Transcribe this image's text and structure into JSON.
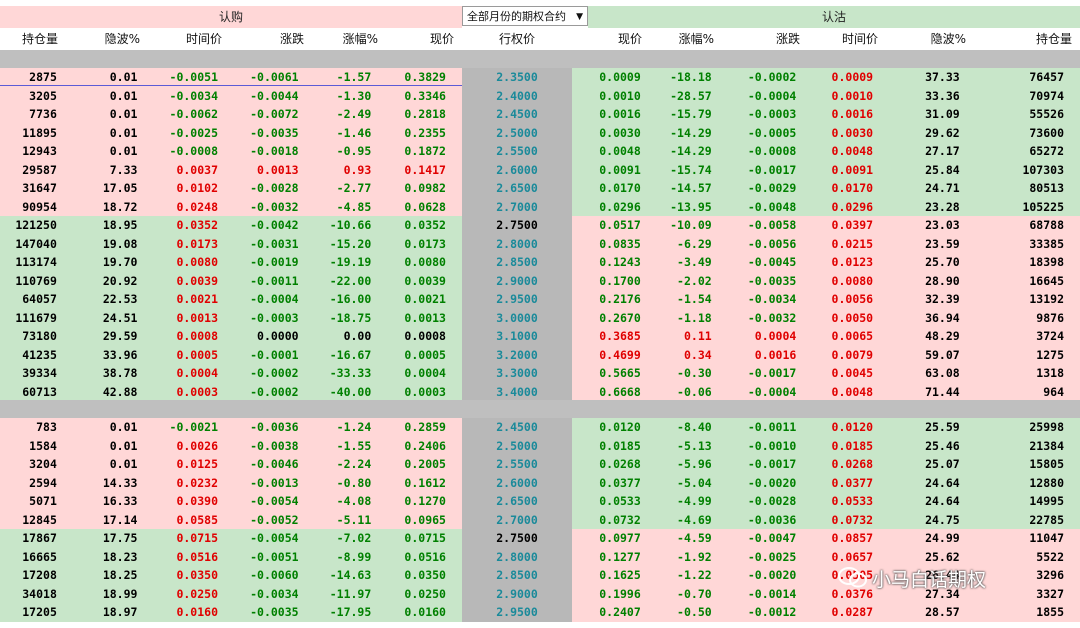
{
  "titles": {
    "call": "认购",
    "put": "认沽",
    "dropdown": "全部月份的期权合约"
  },
  "headers": {
    "call": [
      "持仓量",
      "隐波%",
      "时间价",
      "涨跌",
      "涨幅%",
      "现价"
    ],
    "mid": "行权价",
    "put": [
      "现价",
      "涨幅%",
      "涨跌",
      "时间价",
      "隐波%",
      "持仓量"
    ]
  },
  "section1": [
    {
      "call": [
        "2875",
        "0.01",
        "-0.0051",
        "-0.0061",
        "-1.57",
        "0.3829"
      ],
      "strike": "2.3500",
      "put": [
        "0.0009",
        "-18.18",
        "-0.0002",
        "0.0009",
        "37.33",
        "76457"
      ]
    },
    {
      "call": [
        "3205",
        "0.01",
        "-0.0034",
        "-0.0044",
        "-1.30",
        "0.3346"
      ],
      "strike": "2.4000",
      "put": [
        "0.0010",
        "-28.57",
        "-0.0004",
        "0.0010",
        "33.36",
        "70974"
      ]
    },
    {
      "call": [
        "7736",
        "0.01",
        "-0.0062",
        "-0.0072",
        "-2.49",
        "0.2818"
      ],
      "strike": "2.4500",
      "put": [
        "0.0016",
        "-15.79",
        "-0.0003",
        "0.0016",
        "31.09",
        "55526"
      ]
    },
    {
      "call": [
        "11895",
        "0.01",
        "-0.0025",
        "-0.0035",
        "-1.46",
        "0.2355"
      ],
      "strike": "2.5000",
      "put": [
        "0.0030",
        "-14.29",
        "-0.0005",
        "0.0030",
        "29.62",
        "73600"
      ]
    },
    {
      "call": [
        "12943",
        "0.01",
        "-0.0008",
        "-0.0018",
        "-0.95",
        "0.1872"
      ],
      "strike": "2.5500",
      "put": [
        "0.0048",
        "-14.29",
        "-0.0008",
        "0.0048",
        "27.17",
        "65272"
      ]
    },
    {
      "call": [
        "29587",
        "7.33",
        "0.0037",
        "0.0013",
        "0.93",
        "0.1417"
      ],
      "strike": "2.6000",
      "put": [
        "0.0091",
        "-15.74",
        "-0.0017",
        "0.0091",
        "25.84",
        "107303"
      ]
    },
    {
      "call": [
        "31647",
        "17.05",
        "0.0102",
        "-0.0028",
        "-2.77",
        "0.0982"
      ],
      "strike": "2.6500",
      "put": [
        "0.0170",
        "-14.57",
        "-0.0029",
        "0.0170",
        "24.71",
        "80513"
      ]
    },
    {
      "call": [
        "90954",
        "18.72",
        "0.0248",
        "-0.0032",
        "-4.85",
        "0.0628"
      ],
      "strike": "2.7000",
      "put": [
        "0.0296",
        "-13.95",
        "-0.0048",
        "0.0296",
        "23.28",
        "105225"
      ]
    },
    {
      "call": [
        "121250",
        "18.95",
        "0.0352",
        "-0.0042",
        "-10.66",
        "0.0352"
      ],
      "strike": "2.7500",
      "put": [
        "0.0517",
        "-10.09",
        "-0.0058",
        "0.0397",
        "23.03",
        "68788"
      ]
    },
    {
      "call": [
        "147040",
        "19.08",
        "0.0173",
        "-0.0031",
        "-15.20",
        "0.0173"
      ],
      "strike": "2.8000",
      "put": [
        "0.0835",
        "-6.29",
        "-0.0056",
        "0.0215",
        "23.59",
        "33385"
      ]
    },
    {
      "call": [
        "113174",
        "19.70",
        "0.0080",
        "-0.0019",
        "-19.19",
        "0.0080"
      ],
      "strike": "2.8500",
      "put": [
        "0.1243",
        "-3.49",
        "-0.0045",
        "0.0123",
        "25.70",
        "18398"
      ]
    },
    {
      "call": [
        "110769",
        "20.92",
        "0.0039",
        "-0.0011",
        "-22.00",
        "0.0039"
      ],
      "strike": "2.9000",
      "put": [
        "0.1700",
        "-2.02",
        "-0.0035",
        "0.0080",
        "28.90",
        "16645"
      ]
    },
    {
      "call": [
        "64057",
        "22.53",
        "0.0021",
        "-0.0004",
        "-16.00",
        "0.0021"
      ],
      "strike": "2.9500",
      "put": [
        "0.2176",
        "-1.54",
        "-0.0034",
        "0.0056",
        "32.39",
        "13192"
      ]
    },
    {
      "call": [
        "111679",
        "24.51",
        "0.0013",
        "-0.0003",
        "-18.75",
        "0.0013"
      ],
      "strike": "3.0000",
      "put": [
        "0.2670",
        "-1.18",
        "-0.0032",
        "0.0050",
        "36.94",
        "9876"
      ]
    },
    {
      "call": [
        "73180",
        "29.59",
        "0.0008",
        "0.0000",
        "0.00",
        "0.0008"
      ],
      "strike": "3.1000",
      "put": [
        "0.3685",
        "0.11",
        "0.0004",
        "0.0065",
        "48.29",
        "3724"
      ]
    },
    {
      "call": [
        "41235",
        "33.96",
        "0.0005",
        "-0.0001",
        "-16.67",
        "0.0005"
      ],
      "strike": "3.2000",
      "put": [
        "0.4699",
        "0.34",
        "0.0016",
        "0.0079",
        "59.07",
        "1275"
      ]
    },
    {
      "call": [
        "39334",
        "38.78",
        "0.0004",
        "-0.0002",
        "-33.33",
        "0.0004"
      ],
      "strike": "3.3000",
      "put": [
        "0.5665",
        "-0.30",
        "-0.0017",
        "0.0045",
        "63.08",
        "1318"
      ]
    },
    {
      "call": [
        "60713",
        "42.88",
        "0.0003",
        "-0.0002",
        "-40.00",
        "0.0003"
      ],
      "strike": "3.4000",
      "put": [
        "0.6668",
        "-0.06",
        "-0.0004",
        "0.0048",
        "71.44",
        "964"
      ]
    }
  ],
  "section2": [
    {
      "call": [
        "783",
        "0.01",
        "-0.0021",
        "-0.0036",
        "-1.24",
        "0.2859"
      ],
      "strike": "2.4500",
      "put": [
        "0.0120",
        "-8.40",
        "-0.0011",
        "0.0120",
        "25.59",
        "25998"
      ]
    },
    {
      "call": [
        "1584",
        "0.01",
        "0.0026",
        "-0.0038",
        "-1.55",
        "0.2406"
      ],
      "strike": "2.5000",
      "put": [
        "0.0185",
        "-5.13",
        "-0.0010",
        "0.0185",
        "25.46",
        "21384"
      ]
    },
    {
      "call": [
        "3204",
        "0.01",
        "0.0125",
        "-0.0046",
        "-2.24",
        "0.2005"
      ],
      "strike": "2.5500",
      "put": [
        "0.0268",
        "-5.96",
        "-0.0017",
        "0.0268",
        "25.07",
        "15805"
      ]
    },
    {
      "call": [
        "2594",
        "14.33",
        "0.0232",
        "-0.0013",
        "-0.80",
        "0.1612"
      ],
      "strike": "2.6000",
      "put": [
        "0.0377",
        "-5.04",
        "-0.0020",
        "0.0377",
        "24.64",
        "12880"
      ]
    },
    {
      "call": [
        "5071",
        "16.33",
        "0.0390",
        "-0.0054",
        "-4.08",
        "0.1270"
      ],
      "strike": "2.6500",
      "put": [
        "0.0533",
        "-4.99",
        "-0.0028",
        "0.0533",
        "24.64",
        "14995"
      ]
    },
    {
      "call": [
        "12845",
        "17.14",
        "0.0585",
        "-0.0052",
        "-5.11",
        "0.0965"
      ],
      "strike": "2.7000",
      "put": [
        "0.0732",
        "-4.69",
        "-0.0036",
        "0.0732",
        "24.75",
        "22785"
      ]
    },
    {
      "call": [
        "17867",
        "17.75",
        "0.0715",
        "-0.0054",
        "-7.02",
        "0.0715"
      ],
      "strike": "2.7500",
      "put": [
        "0.0977",
        "-4.59",
        "-0.0047",
        "0.0857",
        "24.99",
        "11047"
      ]
    },
    {
      "call": [
        "16665",
        "18.23",
        "0.0516",
        "-0.0051",
        "-8.99",
        "0.0516"
      ],
      "strike": "2.8000",
      "put": [
        "0.1277",
        "-1.92",
        "-0.0025",
        "0.0657",
        "25.62",
        "5522"
      ]
    },
    {
      "call": [
        "17208",
        "18.25",
        "0.0350",
        "-0.0060",
        "-14.63",
        "0.0350"
      ],
      "strike": "2.8500",
      "put": [
        "0.1625",
        "-1.22",
        "-0.0020",
        "0.0505",
        "26.44",
        "3296"
      ]
    },
    {
      "call": [
        "34018",
        "18.99",
        "0.0250",
        "-0.0034",
        "-11.97",
        "0.0250"
      ],
      "strike": "2.9000",
      "put": [
        "0.1996",
        "-0.70",
        "-0.0014",
        "0.0376",
        "27.34",
        "3327"
      ]
    },
    {
      "call": [
        "17205",
        "18.97",
        "0.0160",
        "-0.0035",
        "-17.95",
        "0.0160"
      ],
      "strike": "2.9500",
      "put": [
        "0.2407",
        "-0.50",
        "-0.0012",
        "0.0287",
        "28.57",
        "1855"
      ]
    }
  ],
  "watermark": "小马白话期权",
  "colors": {
    "pink": "#ffd7d7",
    "green": "#c8e6c9",
    "gray": "#bfbfbf",
    "up": "#e00000",
    "down": "#008000",
    "strike": "#1a8a9a"
  }
}
